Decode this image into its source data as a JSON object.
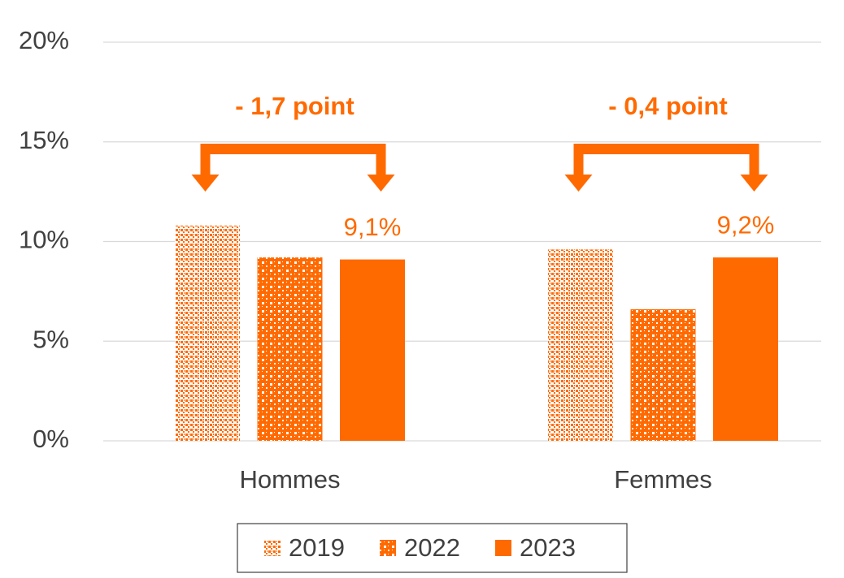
{
  "chart_data": {
    "type": "bar",
    "categories": [
      "Hommes",
      "Femmes"
    ],
    "series": [
      {
        "name": "2019",
        "color": "#ff6a00",
        "pattern": "dots",
        "values": [
          10.8,
          9.6
        ]
      },
      {
        "name": "2022",
        "color": "#ff6a00",
        "pattern": "checks",
        "values": [
          9.2,
          6.6
        ]
      },
      {
        "name": "2023",
        "color": "#ff6a00",
        "pattern": "solid",
        "values": [
          9.1,
          9.2
        ],
        "value_labels": [
          "9,1%",
          "9,2%"
        ]
      }
    ],
    "ylim": [
      0,
      20
    ],
    "yticks": [
      {
        "value": 0,
        "label": "0%"
      },
      {
        "value": 5,
        "label": "5%"
      },
      {
        "value": 10,
        "label": "10%"
      },
      {
        "value": 15,
        "label": "15%"
      },
      {
        "value": 20,
        "label": "20%"
      }
    ],
    "grid": true,
    "legend": "bottom",
    "annotations": [
      "- 1,7 point",
      "- 0,4 point"
    ]
  }
}
